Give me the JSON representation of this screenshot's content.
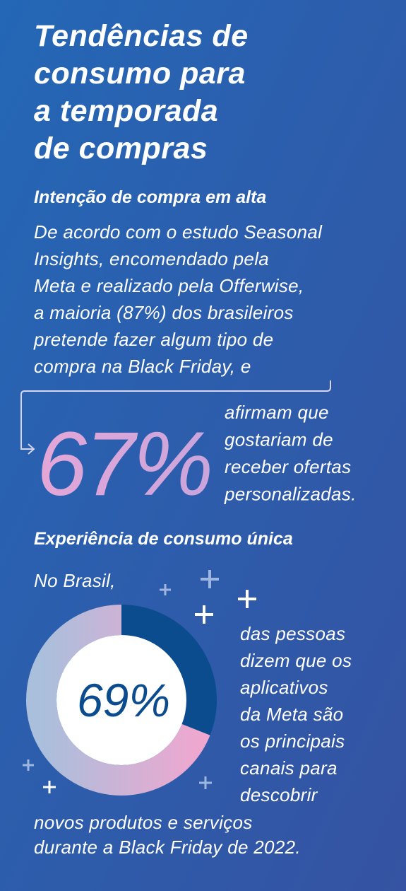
{
  "title": [
    "Tendências de",
    "consumo para",
    "a temporada",
    "de compras"
  ],
  "section_1": {
    "heading": "Intenção de compra em alta",
    "body": [
      "De acordo com o estudo Seasonal",
      "Insights, encomendado pela",
      "Meta e realizado pela Offerwise,",
      "a maioria (87%) dos brasileiros",
      "pretende fazer algum tipo de",
      "compra na Black Friday, e"
    ],
    "stat": "67%",
    "stat_text": [
      "afirmam que",
      "gostariam de",
      "receber ofertas",
      "personalizadas."
    ]
  },
  "section_2": {
    "heading": "Experiência de consumo única",
    "intro": "No Brasil,",
    "donut": {
      "value": 69,
      "label": "69%"
    },
    "text": [
      "das pessoas",
      "dizem que os",
      "aplicativos",
      "da Meta são",
      "os principais",
      "canais para",
      "descobrir"
    ],
    "closing": [
      "novos produtos e serviços",
      "durante a Black Friday de 2022."
    ]
  }
}
